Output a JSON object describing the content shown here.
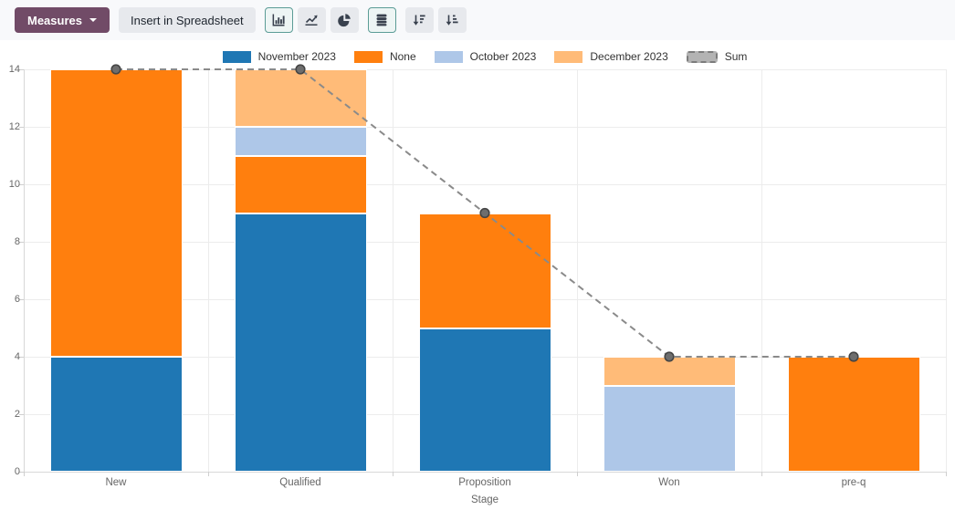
{
  "toolbar": {
    "measures": {
      "label": "Measures"
    },
    "insert_spreadsheet": {
      "label": "Insert in Spreadsheet"
    },
    "chart_types": [
      {
        "icon": "bar-chart-icon",
        "active": true
      },
      {
        "icon": "line-chart-icon",
        "active": false
      },
      {
        "icon": "pie-chart-icon",
        "active": false
      }
    ],
    "stacked_toggle": {
      "icon": "stacked-icon",
      "active": true
    },
    "sorting": [
      {
        "icon": "sort-descending-icon",
        "active": false
      },
      {
        "icon": "sort-ascending-icon",
        "active": false
      }
    ],
    "colors": {
      "measures_bg": "#714B67",
      "flat_button_bg": "#e7e9ed",
      "active_button_bg": "#edf5f4",
      "active_button_border": "#5b9c96"
    }
  },
  "chart_data": {
    "type": "bar",
    "stacked": true,
    "title": "",
    "xlabel": "Stage",
    "ylabel": "",
    "ylim": [
      0,
      14
    ],
    "yticks": [
      0,
      2,
      4,
      6,
      8,
      10,
      12,
      14
    ],
    "grid": true,
    "legend_position": "top",
    "categories": [
      "New",
      "Qualified",
      "Proposition",
      "Won",
      "pre-q"
    ],
    "series": [
      {
        "name": "November 2023",
        "color": "#1f77b4",
        "values": [
          4,
          9,
          5,
          0,
          0
        ]
      },
      {
        "name": "None",
        "color": "#ff7f0e",
        "values": [
          10,
          2,
          4,
          0,
          4
        ]
      },
      {
        "name": "October 2023",
        "color": "#aec7e8",
        "values": [
          0,
          1,
          0,
          3,
          0
        ]
      },
      {
        "name": "December 2023",
        "color": "#ffbb78",
        "values": [
          0,
          2,
          0,
          1,
          0
        ]
      }
    ],
    "line_series": {
      "name": "Sum",
      "values": [
        14,
        14,
        9,
        4,
        4
      ],
      "line_color": "#8a8a8a",
      "point_fill": "#6e6e6e",
      "point_stroke": "#454545",
      "style": "dashed"
    },
    "totals": [
      14,
      14,
      9,
      4,
      4
    ]
  }
}
